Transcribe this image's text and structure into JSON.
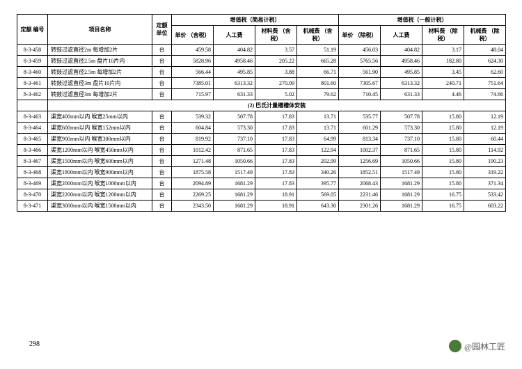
{
  "page_number": "298",
  "watermark_text": "@园林工匠",
  "header": {
    "code": "定额\n编号",
    "name": "项目名称",
    "unit": "定额\n单位",
    "group1": "增值税（简易计税）",
    "group2": "增值税（一般计税）",
    "cols": {
      "up": "单价\n（含税）",
      "labor": "人工费",
      "mat1": "材料费\n（含税）",
      "mach1": "机械费\n（含税）",
      "up2": "单价\n（除税）",
      "labor2": "人工费",
      "mat2": "材料费\n（除税）",
      "mach2": "机械费\n（除税）"
    }
  },
  "rows": [
    {
      "code": "8-3-458",
      "name": "转鼓过滤直径2m 每增加2片",
      "unit": "台",
      "a": "459.58",
      "b": "404.82",
      "c": "3.57",
      "d": "51.19",
      "e": "456.03",
      "f": "404.82",
      "g": "3.17",
      "h": "48.04"
    },
    {
      "code": "8-3-459",
      "name": "转鼓过滤直径2.5m 盘片10片内",
      "unit": "台",
      "a": "5828.96",
      "b": "4958.46",
      "c": "205.22",
      "d": "665.28",
      "e": "5765.56",
      "f": "4958.46",
      "g": "182.80",
      "h": "624.30"
    },
    {
      "code": "8-3-460",
      "name": "转鼓过滤直径2.5m 每增加2片",
      "unit": "台",
      "a": "566.44",
      "b": "495.85",
      "c": "3.88",
      "d": "66.71",
      "e": "561.90",
      "f": "495.85",
      "g": "3.45",
      "h": "62.60"
    },
    {
      "code": "8-3-461",
      "name": "转鼓过滤直径3m 盘片10片内",
      "unit": "台",
      "a": "7385.01",
      "b": "6313.32",
      "c": "270.09",
      "d": "801.60",
      "e": "7305.67",
      "f": "6313.32",
      "g": "240.71",
      "h": "751.64"
    },
    {
      "code": "8-3-462",
      "name": "转鼓过滤直径3m 每增加2片",
      "unit": "台",
      "a": "715.97",
      "b": "631.33",
      "c": "5.02",
      "d": "79.62",
      "e": "710.45",
      "f": "631.33",
      "g": "4.46",
      "h": "74.66"
    }
  ],
  "section_title": "(2) 巴氏计量槽槽体安装",
  "rows2": [
    {
      "code": "8-3-463",
      "name": "渠宽400mm以内 喉宽25mm以内",
      "unit": "台",
      "a": "539.32",
      "b": "507.78",
      "c": "17.83",
      "d": "13.71",
      "e": "535.77",
      "f": "507.78",
      "g": "15.80",
      "h": "12.19"
    },
    {
      "code": "8-3-464",
      "name": "渠宽600mm以内 喉宽152mm以内",
      "unit": "台",
      "a": "604.84",
      "b": "573.30",
      "c": "17.83",
      "d": "13.71",
      "e": "601.29",
      "f": "573.30",
      "g": "15.80",
      "h": "12.19"
    },
    {
      "code": "8-3-465",
      "name": "渠宽900mm以内 喉宽300mm以内",
      "unit": "台",
      "a": "819.92",
      "b": "737.10",
      "c": "17.83",
      "d": "64.99",
      "e": "813.34",
      "f": "737.10",
      "g": "15.80",
      "h": "60.44"
    },
    {
      "code": "8-3-466",
      "name": "渠宽1200mm以内 喉宽450mm以内",
      "unit": "台",
      "a": "1012.42",
      "b": "871.65",
      "c": "17.83",
      "d": "122.94",
      "e": "1002.37",
      "f": "871.65",
      "g": "15.80",
      "h": "114.92"
    },
    {
      "code": "8-3-467",
      "name": "渠宽1500mm以内 喉宽600mm以内",
      "unit": "台",
      "a": "1271.48",
      "b": "1050.66",
      "c": "17.83",
      "d": "202.99",
      "e": "1256.69",
      "f": "1050.66",
      "g": "15.80",
      "h": "190.23"
    },
    {
      "code": "8-3-468",
      "name": "渠宽1800mm以内 喉宽900mm以内",
      "unit": "台",
      "a": "1875.58",
      "b": "1517.49",
      "c": "17.83",
      "d": "340.26",
      "e": "1852.51",
      "f": "1517.49",
      "g": "15.80",
      "h": "319.22"
    },
    {
      "code": "8-3-469",
      "name": "渠宽2000mm以内 喉宽1000mm以内",
      "unit": "台",
      "a": "2094.89",
      "b": "1681.29",
      "c": "17.83",
      "d": "395.77",
      "e": "2068.43",
      "f": "1681.29",
      "g": "15.80",
      "h": "371.34"
    },
    {
      "code": "8-3-470",
      "name": "渠宽2200mm以内 喉宽1200mm以内",
      "unit": "台",
      "a": "2269.25",
      "b": "1681.29",
      "c": "18.91",
      "d": "569.05",
      "e": "2231.46",
      "f": "1681.29",
      "g": "16.75",
      "h": "533.42"
    },
    {
      "code": "8-3-471",
      "name": "渠宽3000mm以内 喉宽1500mm以内",
      "unit": "台",
      "a": "2343.50",
      "b": "1681.29",
      "c": "18.91",
      "d": "643.30",
      "e": "2301.26",
      "f": "1681.29",
      "g": "16.75",
      "h": "603.22"
    }
  ]
}
